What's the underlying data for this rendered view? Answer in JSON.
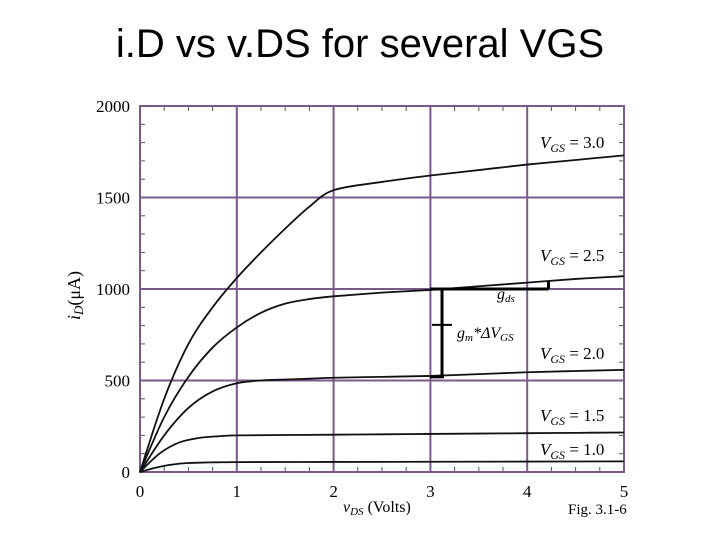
{
  "slide": {
    "title": "i.D vs v.DS for several VGS"
  },
  "chart_data": {
    "type": "line",
    "xlabel": "vDS (Volts)",
    "ylabel": "iD(μA)",
    "xlim": [
      0,
      5
    ],
    "ylim": [
      0,
      2000
    ],
    "xticks": [
      "0",
      "1",
      "2",
      "3",
      "4",
      "5"
    ],
    "yticks": [
      "0",
      "500",
      "1000",
      "1500",
      "2000"
    ],
    "grid": true,
    "series": [
      {
        "name": "VGS = 3.0",
        "x": [
          0,
          0.25,
          0.5,
          0.75,
          1.0,
          1.25,
          1.5,
          1.75,
          2.0,
          2.5,
          3.0,
          3.5,
          4.0,
          4.5,
          5.0
        ],
        "y": [
          0,
          400,
          700,
          900,
          1060,
          1200,
          1330,
          1450,
          1540,
          1585,
          1620,
          1650,
          1680,
          1705,
          1730
        ]
      },
      {
        "name": "VGS = 2.5",
        "x": [
          0,
          0.25,
          0.5,
          0.75,
          1.0,
          1.25,
          1.5,
          1.75,
          2.0,
          2.5,
          3.0,
          3.5,
          4.0,
          4.5,
          5.0
        ],
        "y": [
          0,
          300,
          520,
          680,
          790,
          870,
          920,
          945,
          960,
          980,
          995,
          1015,
          1035,
          1055,
          1070
        ]
      },
      {
        "name": "VGS = 2.0",
        "x": [
          0,
          0.25,
          0.5,
          0.75,
          1.0,
          1.25,
          1.5,
          1.75,
          2.0,
          2.5,
          3.0,
          3.5,
          4.0,
          4.5,
          5.0
        ],
        "y": [
          0,
          200,
          350,
          440,
          485,
          500,
          505,
          510,
          515,
          520,
          525,
          535,
          545,
          552,
          558
        ]
      },
      {
        "name": "VGS = 1.5",
        "x": [
          0,
          0.2,
          0.4,
          0.6,
          0.8,
          1.0,
          1.5,
          2.0,
          2.5,
          3.0,
          3.5,
          4.0,
          4.5,
          5.0
        ],
        "y": [
          0,
          100,
          160,
          185,
          195,
          200,
          202,
          204,
          206,
          208,
          210,
          212,
          214,
          216
        ]
      },
      {
        "name": "VGS = 1.0",
        "x": [
          0,
          0.1,
          0.2,
          0.3,
          0.4,
          0.5,
          0.6,
          0.8,
          1.0,
          2.0,
          3.0,
          4.0,
          5.0
        ],
        "y": [
          0,
          15,
          28,
          38,
          45,
          49,
          51,
          53,
          54,
          55,
          56,
          57,
          58
        ]
      }
    ],
    "series_labels": {
      "v30": {
        "prefix": "V",
        "sub": "GS",
        "value": " = 3.0"
      },
      "v25": {
        "prefix": "V",
        "sub": "GS",
        "value": " = 2.5"
      },
      "v20": {
        "prefix": "V",
        "sub": "GS",
        "value": " = 2.0"
      },
      "v15": {
        "prefix": "V",
        "sub": "GS",
        "value": " = 1.5"
      },
      "v10": {
        "prefix": "V",
        "sub": "GS",
        "value": " = 1.0"
      }
    },
    "axis_text": {
      "ylabel_i": "i",
      "ylabel_sub": "D",
      "ylabel_unit": "(μA)",
      "xlabel_v": "v",
      "xlabel_sub": "DS",
      "xlabel_unit": " (Volts)"
    },
    "annotations": {
      "gds": {
        "main": "g",
        "sub": "ds"
      },
      "gm": {
        "main": "g",
        "sub": "m",
        "op": "*ΔV",
        "sub2": "GS"
      },
      "figure_label": "Fig. 3.1-6"
    },
    "marker_points": {
      "gm_bracket_x": 3.12,
      "gm_bracket_y": [
        520,
        1000
      ],
      "gds_bracket_x": [
        3.12,
        4.22
      ],
      "gds_bracket_y": [
        1000,
        1045
      ]
    }
  }
}
